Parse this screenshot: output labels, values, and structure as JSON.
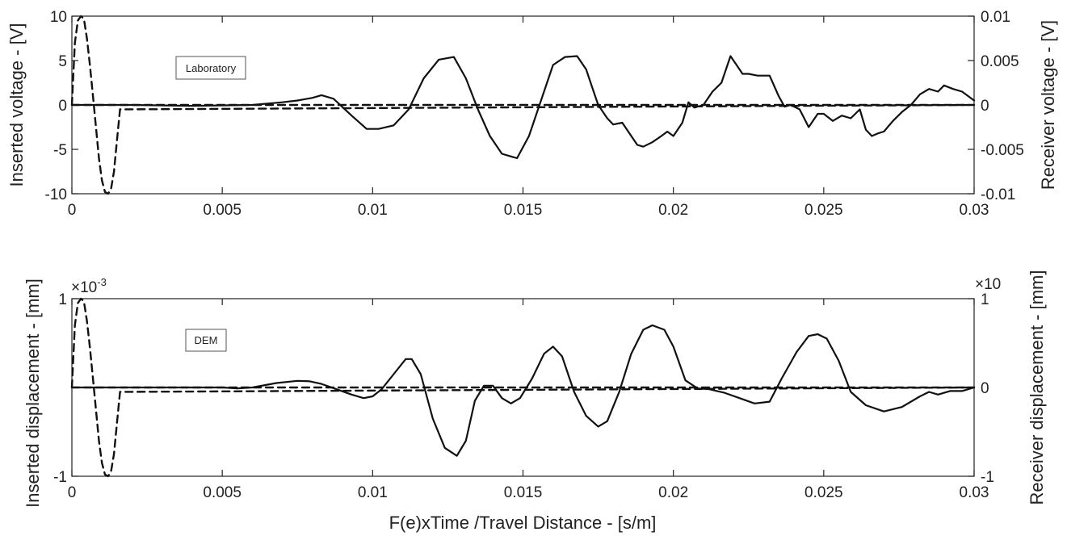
{
  "chart_data": [
    {
      "type": "line",
      "annotation": "Laboratory",
      "xlabel": "",
      "ylabel_left": "Inserted voltage - [V]",
      "ylabel_right": "Receiver voltage - [V]",
      "xlim": [
        0,
        0.03
      ],
      "ylim_left": [
        -10,
        10
      ],
      "ylim_right": [
        -0.01,
        0.01
      ],
      "x_ticks": [
        "0",
        "0.005",
        "0.01",
        "0.015",
        "0.02",
        "0.025",
        "0.03"
      ],
      "y_ticks_left": [
        "10",
        "5",
        "0",
        "-5",
        "-10"
      ],
      "y_ticks_right": [
        "0.01",
        "0.005",
        "0",
        "-0.005",
        "-0.01"
      ],
      "grid": false,
      "series": [
        {
          "axis": "left",
          "style": "dashed",
          "x": [
            0,
            0.0001,
            0.0002,
            0.0003,
            0.0004,
            0.0005,
            0.0006,
            0.0007,
            0.0008,
            0.0009,
            0.001,
            0.0011,
            0.0012,
            0.0013,
            0.0014,
            0.0015,
            0.0016,
            0.03
          ],
          "y": [
            0,
            7,
            9.5,
            10,
            9.7,
            7.5,
            4.5,
            1,
            -2.5,
            -6,
            -8.5,
            -9.8,
            -10,
            -9.5,
            -7.5,
            -4,
            -0.5,
            0
          ]
        },
        {
          "axis": "right",
          "style": "solid",
          "x": [
            0,
            0.002,
            0.004,
            0.006,
            0.007,
            0.0075,
            0.008,
            0.0083,
            0.0087,
            0.0093,
            0.0098,
            0.0102,
            0.0107,
            0.0112,
            0.0117,
            0.0122,
            0.0127,
            0.0131,
            0.0135,
            0.0139,
            0.0143,
            0.0148,
            0.0152,
            0.0156,
            0.016,
            0.0164,
            0.0168,
            0.0171,
            0.0173,
            0.0175,
            0.0178,
            0.018,
            0.0183,
            0.0185,
            0.0188,
            0.019,
            0.0193,
            0.0196,
            0.0198,
            0.02,
            0.0203,
            0.0205,
            0.0207,
            0.021,
            0.0213,
            0.0216,
            0.0219,
            0.0221,
            0.0223,
            0.0225,
            0.0228,
            0.0232,
            0.0235,
            0.0237,
            0.0239,
            0.0242,
            0.0245,
            0.0248,
            0.025,
            0.0253,
            0.0256,
            0.0259,
            0.0262,
            0.0264,
            0.0266,
            0.0268,
            0.027,
            0.0273,
            0.0276,
            0.0279,
            0.0282,
            0.0285,
            0.0288,
            0.029,
            0.0293,
            0.0296,
            0.03
          ],
          "y": [
            0,
            0,
            -0.0001,
            0,
            0.0003,
            0.0005,
            0.0008,
            0.0011,
            0.0007,
            -0.0012,
            -0.0027,
            -0.0027,
            -0.0023,
            -0.0005,
            0.003,
            0.0051,
            0.0054,
            0.003,
            -0.0005,
            -0.0035,
            -0.0055,
            -0.006,
            -0.0035,
            0.0005,
            0.0045,
            0.0054,
            0.0055,
            0.004,
            0.002,
            0,
            -0.0015,
            -0.0022,
            -0.002,
            -0.003,
            -0.0045,
            -0.0047,
            -0.0042,
            -0.0035,
            -0.003,
            -0.0035,
            -0.002,
            0.0003,
            -0.0003,
            0,
            0.0015,
            0.0025,
            0.0055,
            0.0045,
            0.0035,
            0.0035,
            0.0033,
            0.0033,
            0.001,
            -0.0002,
            0,
            -0.0005,
            -0.0025,
            -0.001,
            -0.001,
            -0.0018,
            -0.0012,
            -0.0015,
            -0.0005,
            -0.0028,
            -0.0035,
            -0.0032,
            -0.003,
            -0.0018,
            -0.0008,
            0,
            0.0012,
            0.0018,
            0.0015,
            0.0022,
            0.0018,
            0.0015,
            0.0005
          ]
        },
        {
          "axis": "right",
          "style": "dashed",
          "x": [
            0,
            0.03
          ],
          "y": [
            0,
            0
          ]
        }
      ]
    },
    {
      "type": "line",
      "annotation": "DEM",
      "xlabel": "F(e)xTime /Travel Distance - [s/m]",
      "ylabel_left": "Inserted displacement - [mm]",
      "ylabel_right": "Receiver displacement - [mm]",
      "scale_left": "×10",
      "scale_left_exponent": "-3",
      "scale_right": "×10",
      "xlim": [
        0,
        0.03
      ],
      "ylim_left": [
        -1,
        1
      ],
      "ylim_right": [
        -1,
        1
      ],
      "x_ticks": [
        "0",
        "0.005",
        "0.01",
        "0.015",
        "0.02",
        "0.025",
        "0.03"
      ],
      "y_ticks_left": [
        "1",
        "-1"
      ],
      "y_ticks_right": [
        "1",
        "0",
        "-1"
      ],
      "grid": false,
      "series": [
        {
          "axis": "left",
          "style": "dashed",
          "x": [
            0,
            0.0001,
            0.0002,
            0.0003,
            0.0004,
            0.0005,
            0.0006,
            0.0007,
            0.0008,
            0.0009,
            0.001,
            0.0011,
            0.0012,
            0.0013,
            0.0014,
            0.0015,
            0.0016,
            0.03
          ],
          "y": [
            0,
            0.7,
            0.95,
            1,
            0.97,
            0.75,
            0.45,
            0.1,
            -0.25,
            -0.6,
            -0.85,
            -0.98,
            -1,
            -0.95,
            -0.75,
            -0.4,
            -0.05,
            0
          ]
        },
        {
          "axis": "right",
          "style": "solid",
          "x": [
            0,
            0.005,
            0.0055,
            0.006,
            0.0068,
            0.0075,
            0.0079,
            0.0083,
            0.0088,
            0.0093,
            0.0097,
            0.01,
            0.0103,
            0.0107,
            0.0111,
            0.0113,
            0.0116,
            0.012,
            0.0124,
            0.0128,
            0.0131,
            0.0134,
            0.0137,
            0.014,
            0.0143,
            0.0146,
            0.0149,
            0.0153,
            0.0157,
            0.016,
            0.0163,
            0.0167,
            0.0171,
            0.0175,
            0.0178,
            0.0182,
            0.0186,
            0.019,
            0.0193,
            0.0197,
            0.02,
            0.0204,
            0.0208,
            0.0212,
            0.0217,
            0.0222,
            0.0227,
            0.0232,
            0.0236,
            0.0241,
            0.0245,
            0.0248,
            0.0251,
            0.0255,
            0.0259,
            0.0264,
            0.027,
            0.0276,
            0.0282,
            0.0285,
            0.0288,
            0.0292,
            0.0296,
            0.03
          ],
          "y": [
            0,
            0,
            -0.01,
            0,
            0.05,
            0.075,
            0.07,
            0.04,
            -0.02,
            -0.08,
            -0.12,
            -0.1,
            -0.02,
            0.15,
            0.32,
            0.32,
            0.15,
            -0.35,
            -0.68,
            -0.77,
            -0.6,
            -0.15,
            0.02,
            0.02,
            -0.12,
            -0.18,
            -0.12,
            0.1,
            0.38,
            0.46,
            0.35,
            -0.05,
            -0.32,
            -0.44,
            -0.38,
            -0.05,
            0.38,
            0.65,
            0.7,
            0.65,
            0.46,
            0.08,
            -0.01,
            -0.02,
            -0.06,
            -0.12,
            -0.18,
            -0.16,
            0.1,
            0.4,
            0.58,
            0.6,
            0.55,
            0.3,
            -0.05,
            -0.2,
            -0.27,
            -0.22,
            -0.1,
            -0.05,
            -0.08,
            -0.04,
            -0.04,
            0
          ]
        },
        {
          "axis": "right",
          "style": "dashed",
          "x": [
            0,
            0.03
          ],
          "y": [
            0,
            0
          ]
        }
      ]
    }
  ]
}
